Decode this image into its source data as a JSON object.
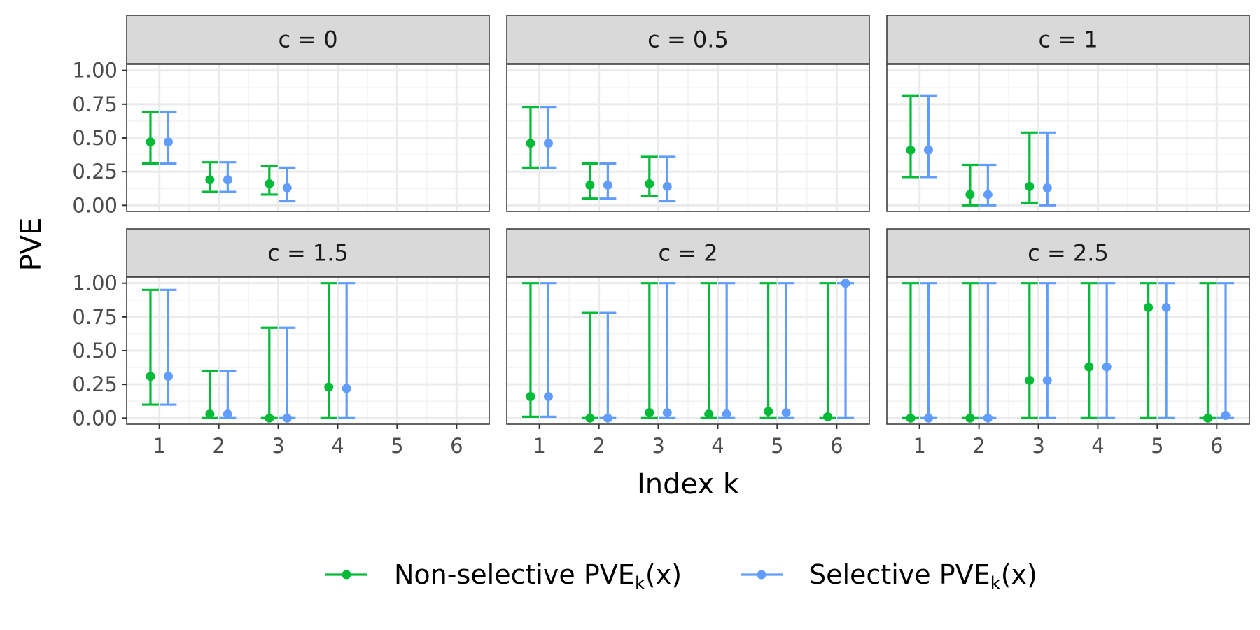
{
  "chart_data": {
    "type": "errorbar",
    "xlabel": "Index k",
    "ylabel": "PVE",
    "ylim": [
      0,
      1
    ],
    "x_ticks": [
      1,
      2,
      3,
      4,
      5,
      6
    ],
    "y_ticks": [
      "0.00",
      "0.25",
      "0.50",
      "0.75",
      "1.00"
    ],
    "legend_position": "bottom",
    "series": [
      {
        "key": "nonselective",
        "name_main": "Non-selective PVE",
        "name_sub": "k",
        "name_tail": "(x)",
        "color": "#00BA38"
      },
      {
        "key": "selective",
        "name_main": "Selective PVE",
        "name_sub": "k",
        "name_tail": "(x)",
        "color": "#619CFF"
      }
    ],
    "panels": [
      {
        "label": "c = 0",
        "nonselective": [
          [
            1,
            0.47,
            0.31,
            0.69
          ],
          [
            2,
            0.19,
            0.1,
            0.32
          ],
          [
            3,
            0.16,
            0.08,
            0.29
          ]
        ],
        "selective": [
          [
            1,
            0.47,
            0.31,
            0.69
          ],
          [
            2,
            0.19,
            0.1,
            0.32
          ],
          [
            3,
            0.13,
            0.03,
            0.28
          ]
        ]
      },
      {
        "label": "c = 0.5",
        "nonselective": [
          [
            1,
            0.46,
            0.28,
            0.73
          ],
          [
            2,
            0.15,
            0.05,
            0.31
          ],
          [
            3,
            0.16,
            0.07,
            0.36
          ]
        ],
        "selective": [
          [
            1,
            0.46,
            0.28,
            0.73
          ],
          [
            2,
            0.15,
            0.05,
            0.31
          ],
          [
            3,
            0.14,
            0.03,
            0.36
          ]
        ]
      },
      {
        "label": "c = 1",
        "nonselective": [
          [
            1,
            0.41,
            0.21,
            0.81
          ],
          [
            2,
            0.08,
            0.0,
            0.3
          ],
          [
            3,
            0.14,
            0.02,
            0.54
          ]
        ],
        "selective": [
          [
            1,
            0.41,
            0.21,
            0.81
          ],
          [
            2,
            0.08,
            0.0,
            0.3
          ],
          [
            3,
            0.13,
            0.0,
            0.54
          ]
        ]
      },
      {
        "label": "c = 1.5",
        "nonselective": [
          [
            1,
            0.31,
            0.1,
            0.95
          ],
          [
            2,
            0.03,
            0.0,
            0.35
          ],
          [
            3,
            0.0,
            0.0,
            0.67
          ],
          [
            4,
            0.23,
            0.0,
            1.0
          ]
        ],
        "selective": [
          [
            1,
            0.31,
            0.1,
            0.95
          ],
          [
            2,
            0.03,
            0.0,
            0.35
          ],
          [
            3,
            0.0,
            0.0,
            0.67
          ],
          [
            4,
            0.22,
            0.0,
            1.0
          ]
        ]
      },
      {
        "label": "c = 2",
        "nonselective": [
          [
            1,
            0.16,
            0.01,
            1.0
          ],
          [
            2,
            0.0,
            0.0,
            0.78
          ],
          [
            3,
            0.04,
            0.0,
            1.0
          ],
          [
            4,
            0.03,
            0.0,
            1.0
          ],
          [
            5,
            0.05,
            0.0,
            1.0
          ],
          [
            6,
            0.01,
            0.0,
            1.0
          ]
        ],
        "selective": [
          [
            1,
            0.16,
            0.01,
            1.0
          ],
          [
            2,
            0.0,
            0.0,
            0.78
          ],
          [
            3,
            0.04,
            0.0,
            1.0
          ],
          [
            4,
            0.03,
            0.0,
            1.0
          ],
          [
            5,
            0.04,
            0.0,
            1.0
          ],
          [
            6,
            1.0,
            0.0,
            1.0
          ]
        ]
      },
      {
        "label": "c = 2.5",
        "nonselective": [
          [
            1,
            0.0,
            0.0,
            1.0
          ],
          [
            2,
            0.0,
            0.0,
            1.0
          ],
          [
            3,
            0.28,
            0.0,
            1.0
          ],
          [
            4,
            0.38,
            0.0,
            1.0
          ],
          [
            5,
            0.82,
            0.0,
            1.0
          ],
          [
            6,
            0.0,
            0.0,
            1.0
          ]
        ],
        "selective": [
          [
            1,
            0.0,
            0.0,
            1.0
          ],
          [
            2,
            0.0,
            0.0,
            1.0
          ],
          [
            3,
            0.28,
            0.0,
            1.0
          ],
          [
            4,
            0.38,
            0.0,
            1.0
          ],
          [
            5,
            0.82,
            0.0,
            1.0
          ],
          [
            6,
            0.02,
            0.0,
            1.0
          ]
        ]
      }
    ]
  }
}
